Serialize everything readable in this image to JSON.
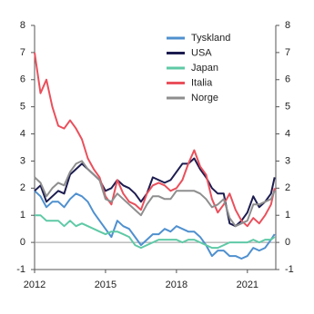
{
  "chart_data": {
    "type": "line",
    "x": [
      2012,
      2012.25,
      2012.5,
      2012.75,
      2013,
      2013.25,
      2013.5,
      2013.75,
      2014,
      2014.25,
      2014.5,
      2014.75,
      2015,
      2015.25,
      2015.5,
      2015.75,
      2016,
      2016.25,
      2016.5,
      2016.75,
      2017,
      2017.25,
      2017.5,
      2017.75,
      2018,
      2018.25,
      2018.5,
      2018.75,
      2019,
      2019.25,
      2019.5,
      2019.75,
      2020,
      2020.25,
      2020.5,
      2020.75,
      2021,
      2021.25,
      2021.5,
      2021.75,
      2022,
      2022.15
    ],
    "series": [
      {
        "name": "Tyskland",
        "color": "#4f90cf",
        "values": [
          1.9,
          1.7,
          1.3,
          1.5,
          1.5,
          1.3,
          1.6,
          1.8,
          1.7,
          1.5,
          1.1,
          0.8,
          0.5,
          0.2,
          0.8,
          0.6,
          0.5,
          0.2,
          -0.1,
          0.1,
          0.3,
          0.3,
          0.5,
          0.4,
          0.6,
          0.5,
          0.4,
          0.4,
          0.2,
          -0.1,
          -0.5,
          -0.3,
          -0.3,
          -0.5,
          -0.5,
          -0.6,
          -0.5,
          -0.2,
          -0.3,
          -0.2,
          0.1,
          0.3
        ]
      },
      {
        "name": "USA",
        "color": "#1c1c50",
        "values": [
          1.9,
          2.1,
          1.5,
          1.7,
          1.9,
          1.8,
          2.5,
          2.7,
          2.9,
          2.7,
          2.5,
          2.3,
          1.9,
          2.0,
          2.3,
          2.1,
          2.0,
          1.8,
          1.5,
          1.8,
          2.4,
          2.3,
          2.2,
          2.3,
          2.6,
          2.9,
          2.9,
          3.1,
          2.7,
          2.4,
          2.0,
          1.8,
          1.8,
          0.7,
          0.6,
          0.8,
          1.1,
          1.7,
          1.3,
          1.5,
          1.8,
          2.4
        ]
      },
      {
        "name": "Japan",
        "color": "#5ec9a6",
        "values": [
          1.0,
          1.0,
          0.8,
          0.8,
          0.8,
          0.6,
          0.8,
          0.6,
          0.7,
          0.6,
          0.5,
          0.4,
          0.3,
          0.4,
          0.4,
          0.3,
          0.2,
          -0.1,
          -0.2,
          -0.1,
          0.0,
          0.1,
          0.1,
          0.1,
          0.1,
          0.0,
          0.1,
          0.1,
          0.0,
          -0.1,
          -0.2,
          -0.2,
          -0.1,
          0.0,
          0.0,
          0.0,
          0.0,
          0.1,
          0.0,
          0.1,
          0.1,
          0.2
        ]
      },
      {
        "name": "Italia",
        "color": "#e9505c",
        "values": [
          7.0,
          5.5,
          6.0,
          5.0,
          4.3,
          4.2,
          4.5,
          4.2,
          3.8,
          3.1,
          2.7,
          2.4,
          1.7,
          1.4,
          2.3,
          1.8,
          1.5,
          1.4,
          1.2,
          1.8,
          2.1,
          2.2,
          2.1,
          1.9,
          2.0,
          2.3,
          2.9,
          3.4,
          2.8,
          2.5,
          1.6,
          1.1,
          1.4,
          1.8,
          1.2,
          0.8,
          0.6,
          0.9,
          0.7,
          1.0,
          1.4,
          2.0
        ]
      },
      {
        "name": "Norge",
        "color": "#8e8e8e",
        "values": [
          2.4,
          2.2,
          1.7,
          2.0,
          2.2,
          2.1,
          2.6,
          2.9,
          3.0,
          2.7,
          2.5,
          2.3,
          1.6,
          1.5,
          1.8,
          1.6,
          1.4,
          1.2,
          1.0,
          1.4,
          1.7,
          1.7,
          1.6,
          1.6,
          1.9,
          1.9,
          1.9,
          1.9,
          1.8,
          1.6,
          1.3,
          1.4,
          1.6,
          0.9,
          0.6,
          0.7,
          0.8,
          1.4,
          1.4,
          1.5,
          1.6,
          1.9
        ]
      }
    ],
    "xlim": [
      2012,
      2022.2
    ],
    "xticks": [
      2012,
      2015,
      2018,
      2021
    ],
    "ylim": [
      -1,
      8
    ],
    "yticks": [
      -1,
      0,
      1,
      2,
      3,
      4,
      5,
      6,
      7,
      8
    ],
    "y2lim": [
      -1,
      8
    ],
    "y2ticks": [
      -1,
      0,
      1,
      2,
      3,
      4,
      5,
      6,
      7,
      8
    ],
    "legend": "upper right"
  }
}
